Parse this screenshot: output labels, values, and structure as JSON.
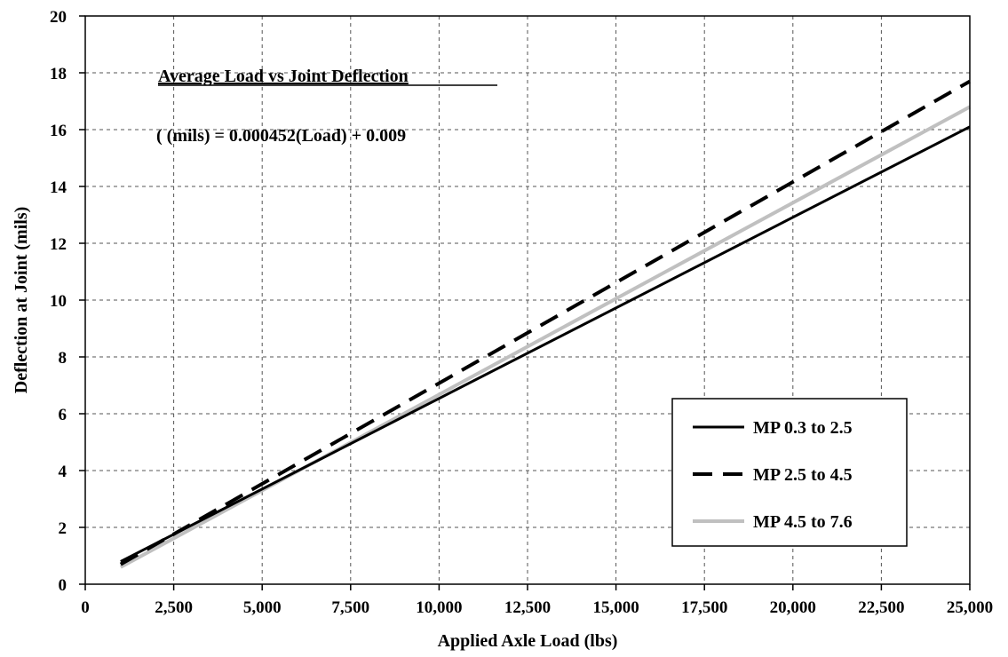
{
  "chart_data": {
    "type": "line",
    "title": "Average Load vs Joint Deflection",
    "equation": "( (mils) = 0.000452(Load) + 0.009",
    "xlabel": "Applied Axle Load (lbs)",
    "ylabel": "Deflection at Joint (mils)",
    "xlim": [
      0,
      25000
    ],
    "ylim": [
      0,
      20
    ],
    "x_ticks": [
      0,
      2500,
      5000,
      7500,
      10000,
      12500,
      15000,
      17500,
      20000,
      22500,
      25000
    ],
    "x_tick_labels": [
      "0",
      "2,500",
      "5,000",
      "7,500",
      "10,000",
      "12,500",
      "15,000",
      "17,500",
      "20,000",
      "22,500",
      "25,000"
    ],
    "y_ticks": [
      0,
      2,
      4,
      6,
      8,
      10,
      12,
      14,
      16,
      18,
      20
    ],
    "y_tick_labels": [
      "0",
      "2",
      "4",
      "6",
      "8",
      "10",
      "12",
      "14",
      "16",
      "18",
      "20"
    ],
    "grid": true,
    "legend_position": "bottom-right",
    "series": [
      {
        "name": "MP 0.3 to 2.5",
        "x": [
          1000,
          25000
        ],
        "y": [
          0.8,
          16.1
        ],
        "color": "#000000",
        "style": "solid"
      },
      {
        "name": "MP 2.5 to 4.5",
        "x": [
          1000,
          25000
        ],
        "y": [
          0.7,
          17.7
        ],
        "color": "#000000",
        "style": "dashed"
      },
      {
        "name": "MP 4.5 to 7.6",
        "x": [
          1000,
          25000
        ],
        "y": [
          0.6,
          16.8
        ],
        "color": "#c0c0c0",
        "style": "solid"
      }
    ]
  }
}
